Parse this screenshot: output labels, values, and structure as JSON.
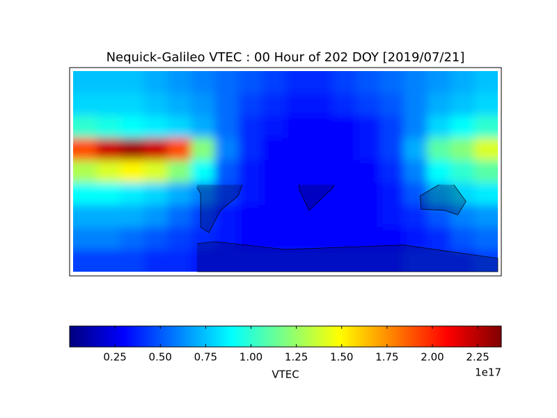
{
  "chart_data": {
    "type": "heatmap",
    "title": "Nequick-Galileo VTEC : 00 Hour of 202 DOY [2019/07/21]",
    "colormap": "jet",
    "x": [
      -170,
      -150,
      -130,
      -110,
      -90,
      -70,
      -50,
      -30,
      -10,
      10,
      30,
      50,
      70,
      90,
      110,
      130,
      150,
      170
    ],
    "y": [
      80,
      60,
      40,
      20,
      0,
      -20,
      -40,
      -60,
      -80
    ],
    "xlim": [
      -180,
      180
    ],
    "ylim": [
      -90,
      90
    ],
    "z": [
      [
        0.75,
        0.75,
        0.75,
        0.7,
        0.65,
        0.6,
        0.55,
        0.5,
        0.45,
        0.4,
        0.4,
        0.45,
        0.5,
        0.55,
        0.6,
        0.65,
        0.7,
        0.75
      ],
      [
        0.8,
        0.8,
        0.8,
        0.75,
        0.7,
        0.65,
        0.55,
        0.45,
        0.4,
        0.35,
        0.35,
        0.4,
        0.45,
        0.5,
        0.6,
        0.7,
        0.75,
        0.8
      ],
      [
        1.0,
        0.95,
        0.9,
        0.85,
        0.8,
        0.7,
        0.55,
        0.4,
        0.35,
        0.3,
        0.3,
        0.3,
        0.35,
        0.45,
        0.6,
        0.8,
        0.9,
        1.0
      ],
      [
        1.9,
        2.2,
        2.3,
        2.2,
        1.9,
        1.2,
        0.6,
        0.4,
        0.3,
        0.3,
        0.3,
        0.3,
        0.35,
        0.45,
        0.7,
        1.1,
        1.2,
        1.4
      ],
      [
        1.3,
        1.4,
        1.5,
        1.4,
        1.2,
        0.9,
        0.5,
        0.35,
        0.3,
        0.3,
        0.3,
        0.3,
        0.3,
        0.4,
        0.6,
        0.9,
        1.0,
        1.1
      ],
      [
        0.9,
        0.9,
        0.85,
        0.8,
        0.7,
        0.6,
        0.45,
        0.35,
        0.3,
        0.3,
        0.3,
        0.3,
        0.3,
        0.35,
        0.5,
        0.7,
        0.8,
        0.85
      ],
      [
        0.7,
        0.7,
        0.7,
        0.65,
        0.55,
        0.45,
        0.35,
        0.3,
        0.3,
        0.3,
        0.3,
        0.3,
        0.3,
        0.35,
        0.4,
        0.5,
        0.6,
        0.65
      ],
      [
        0.6,
        0.6,
        0.55,
        0.5,
        0.45,
        0.4,
        0.35,
        0.3,
        0.3,
        0.3,
        0.3,
        0.3,
        0.3,
        0.3,
        0.35,
        0.4,
        0.5,
        0.55
      ],
      [
        0.45,
        0.45,
        0.45,
        0.4,
        0.4,
        0.35,
        0.35,
        0.35,
        0.35,
        0.35,
        0.35,
        0.35,
        0.35,
        0.35,
        0.4,
        0.4,
        0.4,
        0.45
      ]
    ],
    "zlim": [
      0,
      2.38
    ],
    "zticks": [
      0.25,
      {
        "value": 0.5,
        "label": "0.50"
      },
      0.75,
      {
        "value": 1.0,
        "label": "1.00"
      },
      1.25,
      {
        "value": 1.5,
        "label": "1.50"
      },
      1.75,
      {
        "value": 2.0,
        "label": "2.00"
      },
      2.25
    ],
    "colorbar_label": "VTEC",
    "colorbar_offset": "1e17"
  }
}
